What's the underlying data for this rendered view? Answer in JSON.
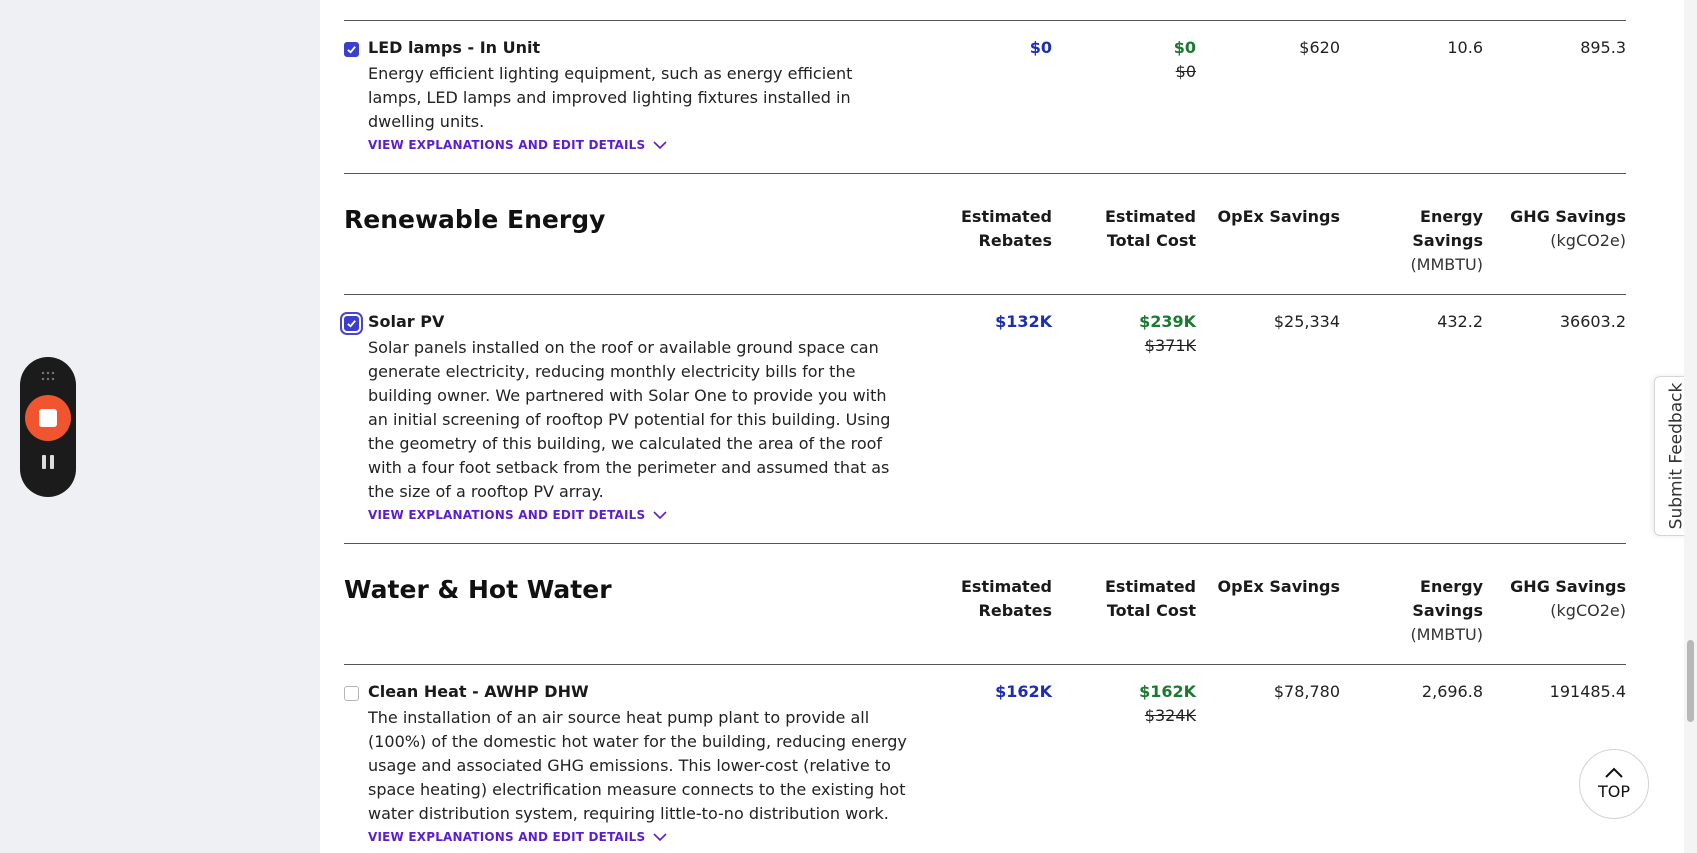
{
  "measures": {
    "led": {
      "title": "LED lamps - In Unit",
      "description": "Energy efficient lighting equipment, such as energy efficient lamps, LED lamps and improved lighting fixtures installed in dwelling units.",
      "link": "VIEW EXPLANATIONS AND EDIT DETAILS",
      "checked": true,
      "rebates": "$0",
      "total_cost": "$0",
      "total_cost_original": "$0",
      "opex": "$620",
      "energy": "10.6",
      "ghg": "895.3"
    },
    "solar": {
      "title": "Solar PV",
      "description": "Solar panels installed on the roof or available ground space can generate electricity, reducing monthly electricity bills for the building owner. We partnered with Solar One to provide you with an initial screening of rooftop PV potential for this building. Using the geometry of this building, we calculated the area of the roof with a four foot setback from the perimeter and assumed that as the size of a rooftop PV array.",
      "link": "VIEW EXPLANATIONS AND EDIT DETAILS",
      "checked": true,
      "rebates": "$132K",
      "total_cost": "$239K",
      "total_cost_original": "$371K",
      "opex": "$25,334",
      "energy": "432.2",
      "ghg": "36603.2"
    },
    "heat": {
      "title": "Clean Heat - AWHP DHW",
      "description": "The installation of an air source heat pump plant to provide all (100%) of the domestic hot water for the building, reducing energy usage and associated GHG emissions. This lower-cost (relative to space heating) electrification measure connects to the existing hot water distribution system, requiring little-to-no distribution work.",
      "link": "VIEW EXPLANATIONS AND EDIT DETAILS",
      "checked": false,
      "rebates": "$162K",
      "total_cost": "$162K",
      "total_cost_original": "$324K",
      "opex": "$78,780",
      "energy": "2,696.8",
      "ghg": "191485.4"
    }
  },
  "sections": {
    "renewable": {
      "title": "Renewable Energy"
    },
    "water": {
      "title": "Water & Hot Water"
    }
  },
  "headers": {
    "rebates_1": "Estimated",
    "rebates_2": "Rebates",
    "cost_1": "Estimated",
    "cost_2": "Total Cost",
    "opex": "OpEx Savings",
    "energy_1": "Energy",
    "energy_2": "Savings",
    "energy_unit": "(MMBTU)",
    "ghg_1": "GHG Savings",
    "ghg_unit": "(kgCO2e)"
  },
  "widgets": {
    "feedback": "Submit Feedback",
    "top": "TOP"
  },
  "colors": {
    "rebate_blue": "#1c2fb0",
    "cost_green": "#1c7a30",
    "link_purple": "#5b1fd1",
    "checkbox": "#3b3fd0",
    "record": "#f1552f"
  }
}
